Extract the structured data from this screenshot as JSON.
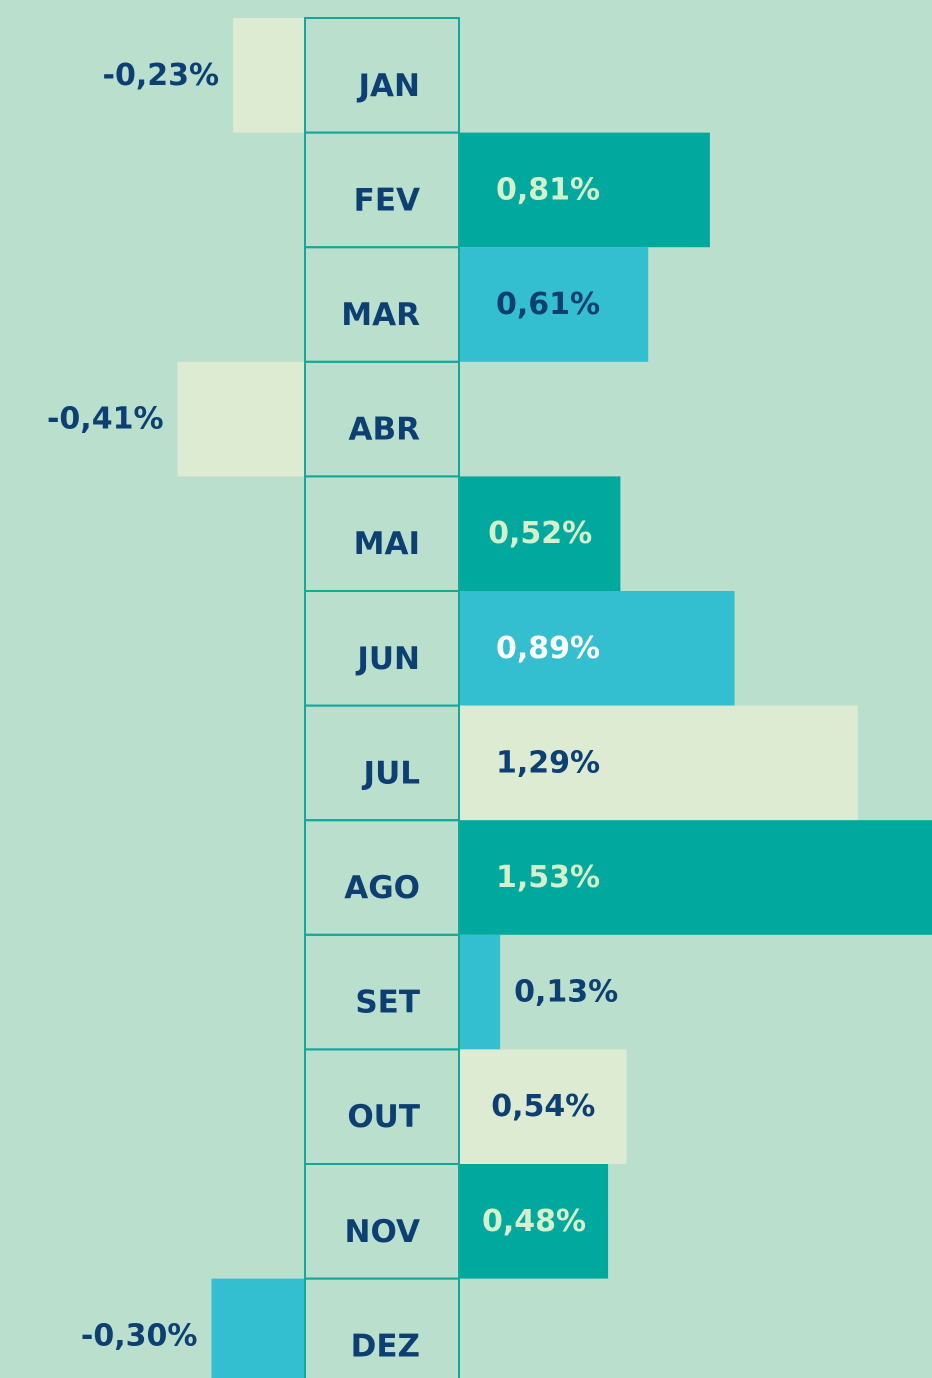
{
  "chart_data": {
    "type": "bar",
    "categories": [
      "JAN",
      "FEV",
      "MAR",
      "ABR",
      "MAI",
      "JUN",
      "JUL",
      "AGO",
      "SET",
      "OUT",
      "NOV",
      "DEZ"
    ],
    "values": [
      -0.23,
      0.81,
      0.61,
      -0.41,
      0.52,
      0.89,
      1.29,
      1.53,
      0.13,
      0.54,
      0.48,
      -0.3
    ],
    "value_labels": [
      "-0,23%",
      "0,81%",
      "0,61%",
      "-0,41%",
      "0,52%",
      "0,89%",
      "1,29%",
      "1,53%",
      "0,13%",
      "0,54%",
      "0,48%",
      "-0,30%"
    ],
    "colors": [
      "#dcebd2",
      "#00a89d",
      "#33bfcf",
      "#dcebd2",
      "#00a89d",
      "#33bfcf",
      "#dcebd2",
      "#00a89d",
      "#33bfcf",
      "#dcebd2",
      "#00a89d",
      "#33bfcf"
    ],
    "label_colors": [
      "#0c3f72",
      "#d4f0cc",
      "#0c3f72",
      "#0c3f72",
      "#d4f0cc",
      "#ffffff",
      "#0c3f72",
      "#d4f0cc",
      "#0c3f72",
      "#0c3f72",
      "#d4f0cc",
      "#0c3f72"
    ]
  }
}
